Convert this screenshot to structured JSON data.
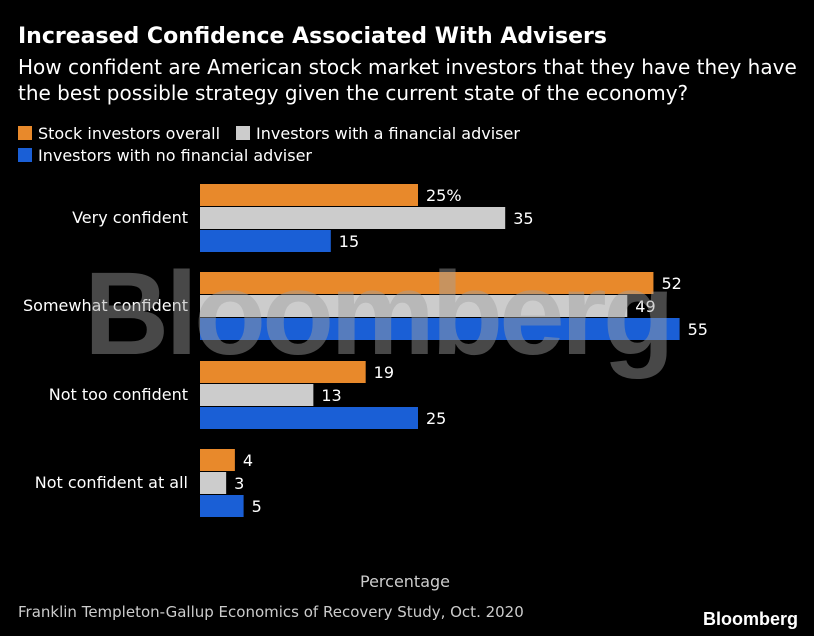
{
  "title": "Increased Confidence Associated With Advisers",
  "subtitle": "How confident are American stock market investors that they have they have the best possible strategy given the current state of the economy?",
  "xlabel": "Percentage",
  "source": "Franklin Templeton-Gallup Economics of Recovery Study, Oct. 2020",
  "brand": "Bloomberg",
  "watermark": "Bloomberg",
  "colors": {
    "overall": "#e8892b",
    "adviser": "#cccccc",
    "no_adviser": "#1a5fd6"
  },
  "chart_data": {
    "type": "bar",
    "orientation": "horizontal",
    "categories": [
      "Very confident",
      "Somewhat confident",
      "Not too confident",
      "Not confident at all"
    ],
    "series": [
      {
        "name": "Stock investors overall",
        "values": [
          25,
          52,
          19,
          4
        ]
      },
      {
        "name": "Investors with a financial adviser",
        "values": [
          35,
          49,
          13,
          3
        ]
      },
      {
        "name": "Investors with no financial adviser",
        "values": [
          15,
          55,
          25,
          5
        ]
      }
    ],
    "value_labels": [
      [
        "25%",
        "52",
        "19",
        "4"
      ],
      [
        "35",
        "49",
        "13",
        "3"
      ],
      [
        "15",
        "55",
        "25",
        "5"
      ]
    ],
    "xlabel": "Percentage",
    "xlim": [
      0,
      55
    ],
    "grid": false,
    "legend_position": "top-left"
  }
}
